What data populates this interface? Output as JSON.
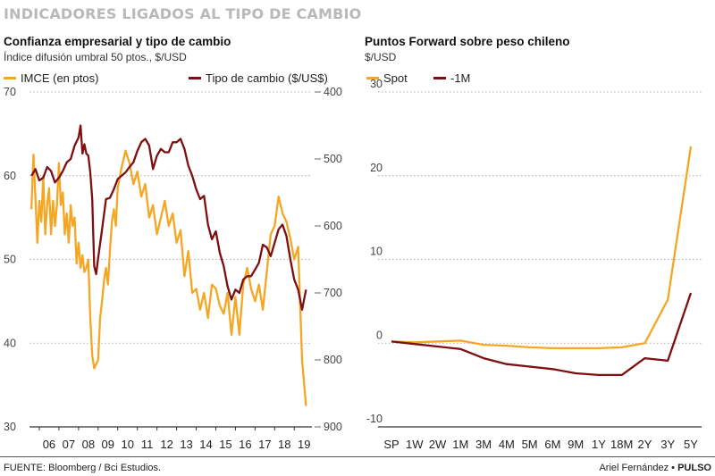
{
  "header": "INDICADORES LIGADOS AL TIPO DE CAMBIO",
  "footer": {
    "source": "FUENTE: Bloomberg / Bci Estudios.",
    "author": "Ariel Fernández",
    "brand": "PULSO"
  },
  "colors": {
    "orange": "#f5a623",
    "darkred": "#7d0f12",
    "grid": "#9a9a9a"
  },
  "chart_data": [
    {
      "type": "line",
      "title": "Confianza empresarial y tipo de cambio",
      "subtitle": "Índice difusión umbral 50 ptos., $/USD",
      "x_ticks": [
        "06",
        "07",
        "08",
        "09",
        "10",
        "11",
        "12",
        "13",
        "14",
        "15",
        "16",
        "17",
        "18",
        "19"
      ],
      "y_left": {
        "ticks": [
          "70",
          "60",
          "50",
          "40",
          "30"
        ],
        "range": [
          30,
          70
        ]
      },
      "y_right": {
        "ticks": [
          "400",
          "500",
          "600",
          "700",
          "800",
          "900"
        ],
        "range": [
          400,
          900
        ],
        "inverted": true
      },
      "series": [
        {
          "name": "IMCE (en ptos)",
          "axis": "left",
          "color": "#f5a623",
          "x": [
            2005.6,
            2005.7,
            2005.8,
            2005.9,
            2006.0,
            2006.1,
            2006.2,
            2006.3,
            2006.4,
            2006.5,
            2006.6,
            2006.7,
            2006.8,
            2006.9,
            2007.0,
            2007.1,
            2007.2,
            2007.3,
            2007.4,
            2007.5,
            2007.6,
            2007.7,
            2007.8,
            2007.9,
            2008.0,
            2008.1,
            2008.2,
            2008.3,
            2008.4,
            2008.5,
            2008.6,
            2008.7,
            2008.8,
            2008.9,
            2009.0,
            2009.1,
            2009.2,
            2009.3,
            2009.4,
            2009.5,
            2009.6,
            2009.7,
            2009.8,
            2009.9,
            2010.0,
            2010.2,
            2010.4,
            2010.6,
            2010.8,
            2011.0,
            2011.2,
            2011.4,
            2011.6,
            2011.8,
            2012.0,
            2012.2,
            2012.4,
            2012.6,
            2012.8,
            2013.0,
            2013.2,
            2013.4,
            2013.6,
            2013.8,
            2014.0,
            2014.2,
            2014.4,
            2014.6,
            2014.8,
            2015.0,
            2015.2,
            2015.4,
            2015.6,
            2015.8,
            2016.0,
            2016.2,
            2016.4,
            2016.6,
            2016.8,
            2017.0,
            2017.2,
            2017.4,
            2017.6,
            2017.8,
            2018.0,
            2018.2,
            2018.4,
            2018.6,
            2018.8,
            2019.0,
            2019.2,
            2019.4,
            2019.6
          ],
          "values": [
            56.0,
            62.5,
            57.5,
            52.0,
            57.0,
            54.5,
            60.0,
            53.0,
            56.5,
            58.5,
            53.0,
            57.0,
            54.0,
            56.5,
            61.5,
            56.5,
            58.0,
            53.0,
            55.5,
            52.0,
            56.5,
            54.0,
            55.0,
            49.5,
            52.0,
            49.0,
            50.5,
            48.5,
            49.0,
            50.0,
            43.0,
            38.5,
            37.0,
            37.5,
            38.0,
            43.0,
            45.0,
            47.5,
            49.0,
            47.0,
            51.0,
            54.5,
            56.0,
            54.0,
            58.5,
            61.0,
            63.0,
            61.5,
            59.0,
            60.5,
            57.5,
            59.0,
            55.0,
            56.5,
            53.0,
            55.0,
            57.0,
            54.0,
            55.5,
            52.0,
            53.5,
            48.0,
            51.0,
            46.0,
            46.5,
            44.0,
            46.0,
            43.0,
            47.0,
            46.5,
            44.5,
            43.5,
            46.0,
            41.0,
            45.5,
            41.0,
            47.0,
            49.0,
            46.5,
            45.0,
            47.0,
            44.0,
            48.5,
            53.0,
            54.0,
            57.5,
            55.5,
            54.5,
            52.5,
            50.0,
            51.5,
            38.0,
            32.5
          ]
        },
        {
          "name": "Tipo de cambio ($/US$)",
          "axis": "right",
          "color": "#7d0f12",
          "x": [
            2005.6,
            2005.8,
            2006.0,
            2006.2,
            2006.4,
            2006.6,
            2006.8,
            2007.0,
            2007.2,
            2007.4,
            2007.6,
            2007.8,
            2008.0,
            2008.1,
            2008.2,
            2008.3,
            2008.4,
            2008.5,
            2008.6,
            2008.7,
            2008.8,
            2008.9,
            2009.0,
            2009.2,
            2009.4,
            2009.6,
            2009.8,
            2010.0,
            2010.2,
            2010.4,
            2010.6,
            2010.8,
            2011.0,
            2011.2,
            2011.4,
            2011.6,
            2011.8,
            2012.0,
            2012.2,
            2012.4,
            2012.6,
            2012.8,
            2013.0,
            2013.2,
            2013.4,
            2013.6,
            2013.8,
            2014.0,
            2014.2,
            2014.4,
            2014.6,
            2014.8,
            2015.0,
            2015.2,
            2015.4,
            2015.6,
            2015.8,
            2016.0,
            2016.2,
            2016.4,
            2016.6,
            2016.8,
            2017.0,
            2017.2,
            2017.4,
            2017.6,
            2017.8,
            2018.0,
            2018.2,
            2018.4,
            2018.6,
            2018.8,
            2019.0,
            2019.2,
            2019.4,
            2019.6
          ],
          "values": [
            525,
            515,
            532,
            528,
            512,
            518,
            535,
            528,
            518,
            505,
            500,
            480,
            468,
            450,
            492,
            478,
            492,
            495,
            520,
            560,
            660,
            672,
            648,
            605,
            560,
            558,
            545,
            530,
            525,
            520,
            512,
            505,
            488,
            475,
            470,
            480,
            515,
            495,
            485,
            490,
            490,
            475,
            475,
            470,
            485,
            510,
            525,
            545,
            560,
            555,
            598,
            620,
            608,
            640,
            660,
            690,
            710,
            695,
            700,
            680,
            675,
            675,
            665,
            655,
            628,
            632,
            645,
            625,
            605,
            598,
            615,
            650,
            680,
            695,
            725,
            695
          ]
        }
      ]
    },
    {
      "type": "line",
      "title": "Puntos Forward sobre peso chileno",
      "subtitle": "$/USD",
      "categories": [
        "SP",
        "1W",
        "2W",
        "1M",
        "3M",
        "4M",
        "5M",
        "6M",
        "9M",
        "1Y",
        "18M",
        "2Y",
        "3Y",
        "5Y"
      ],
      "y": {
        "ticks": [
          "30",
          "20",
          "10",
          "0",
          "-10"
        ],
        "range": [
          -10,
          30
        ]
      },
      "series": [
        {
          "name": "Spot",
          "color": "#f5a623",
          "values": [
            0.2,
            0.1,
            0.2,
            0.3,
            -0.2,
            -0.3,
            -0.5,
            -0.6,
            -0.6,
            -0.6,
            -0.5,
            0.0,
            5.2,
            23.5
          ]
        },
        {
          "name": "-1M",
          "color": "#7d0f12",
          "values": [
            0.2,
            -0.1,
            -0.4,
            -0.7,
            -1.8,
            -2.5,
            -2.8,
            -3.1,
            -3.6,
            -3.8,
            -3.8,
            -1.8,
            -2.1,
            6.0
          ]
        }
      ]
    }
  ]
}
